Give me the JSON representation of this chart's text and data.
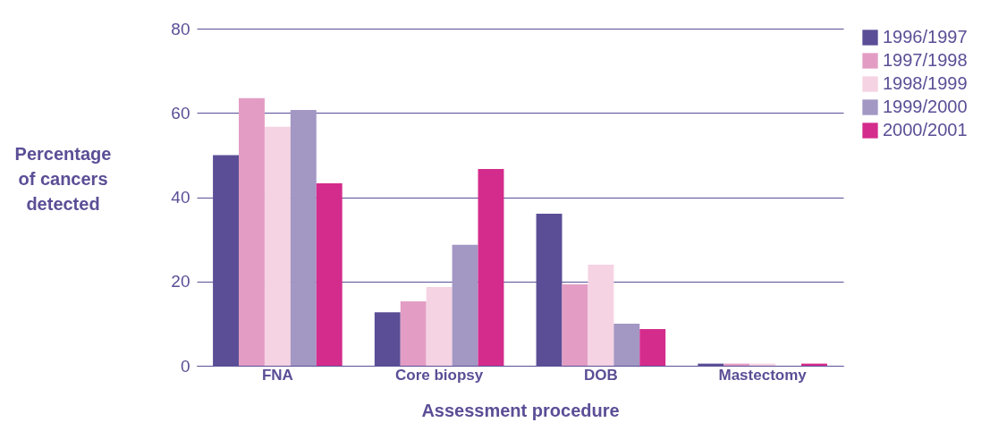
{
  "chart_data": {
    "type": "bar",
    "xlabel": "Assessment procedure",
    "ylabel": "Percentage\nof cancers\ndetected",
    "categories": [
      "FNA",
      "Core biopsy",
      "DOB",
      "Mastectomy"
    ],
    "series": [
      {
        "name": "1996/1997",
        "color": "#5b4e96",
        "values": [
          50,
          12.7,
          36.1,
          0.5
        ]
      },
      {
        "name": "1997/1998",
        "color": "#e39dc4",
        "values": [
          63.5,
          15.3,
          19.3,
          0.5
        ]
      },
      {
        "name": "1998/1999",
        "color": "#f5d3e3",
        "values": [
          56.7,
          18.7,
          24,
          0.5
        ]
      },
      {
        "name": "1999/2000",
        "color": "#a397c4",
        "values": [
          60.7,
          28.7,
          10,
          0
        ]
      },
      {
        "name": "2000/2001",
        "color": "#d42c8c",
        "values": [
          43.3,
          46.7,
          8.7,
          0.5
        ]
      }
    ],
    "ylim": [
      0,
      80
    ],
    "yticks": [
      0,
      20,
      40,
      60,
      80
    ],
    "grid": "y",
    "legend": "right"
  }
}
